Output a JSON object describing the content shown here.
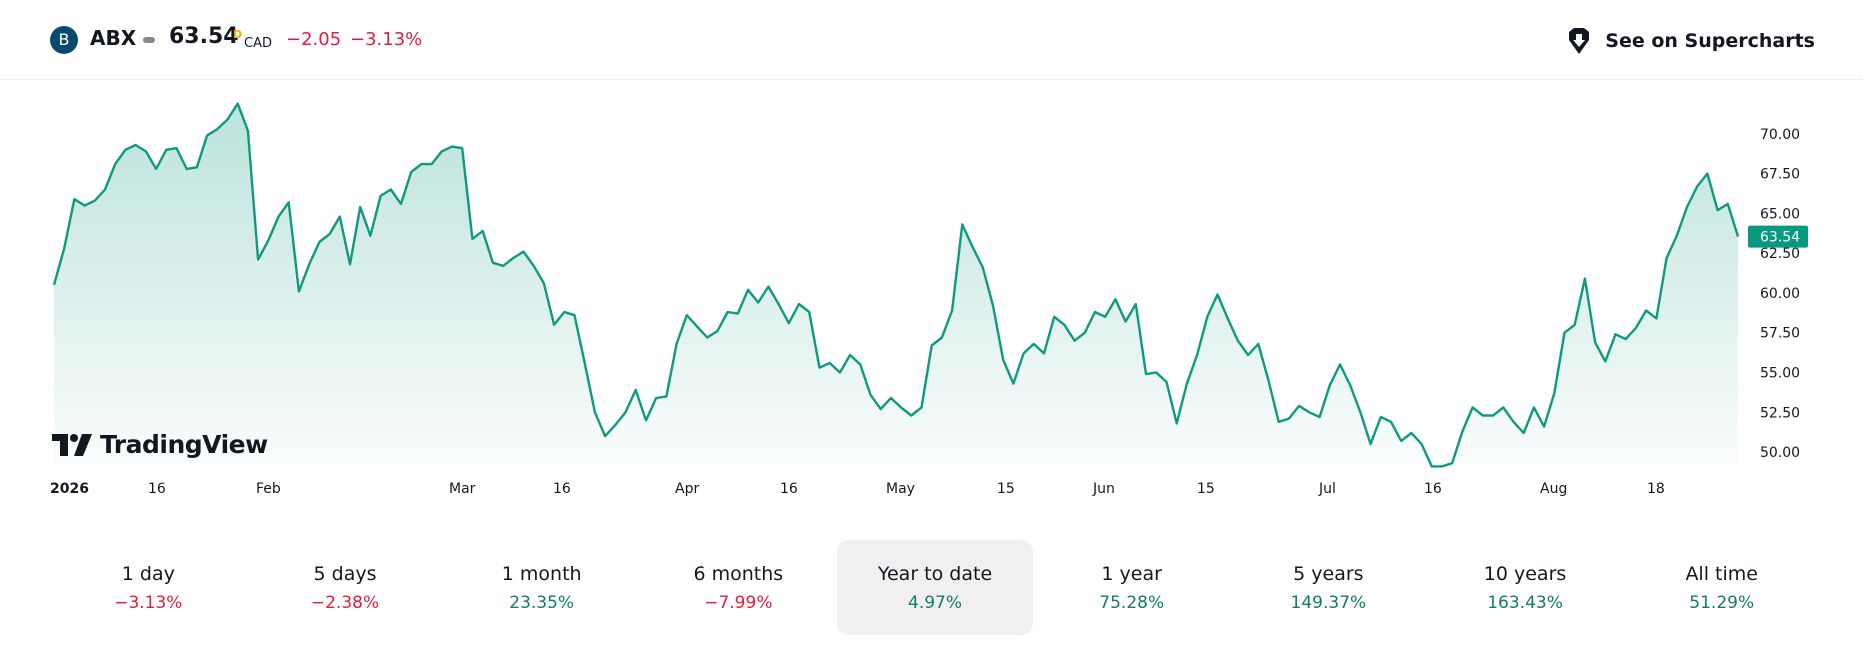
{
  "header": {
    "logo_letter": "B",
    "symbol": "ABX",
    "price": "63.54",
    "price_superscript": "D",
    "currency": "CAD",
    "change": "−2.05",
    "change_pct": "−3.13%",
    "supercharts_label": "See on Supercharts",
    "negative_color": "#e01e3c"
  },
  "brand": {
    "name": "TradingView"
  },
  "colors": {
    "line": "#0f9a80",
    "positive": "#137a6e",
    "negative": "#e01e3c",
    "price_badge": "#089981"
  },
  "chart_data": {
    "type": "area",
    "title": "",
    "xlabel": "",
    "ylabel": "",
    "ylim": [
      49.5,
      71.5
    ],
    "y_ticks": [
      "70.00",
      "67.50",
      "65.00",
      "62.50",
      "60.00",
      "57.50",
      "55.00",
      "52.50",
      "50.00"
    ],
    "x_tick_labels": [
      {
        "label": "2026",
        "bold": true
      },
      {
        "label": "16"
      },
      {
        "label": "Feb"
      },
      {
        "label": "Mar"
      },
      {
        "label": "16"
      },
      {
        "label": "Apr"
      },
      {
        "label": "16"
      },
      {
        "label": "May"
      },
      {
        "label": "15"
      },
      {
        "label": "Jun"
      },
      {
        "label": "15"
      },
      {
        "label": "Jul"
      },
      {
        "label": "16"
      },
      {
        "label": "Aug"
      },
      {
        "label": "18"
      }
    ],
    "last_price_label": "63.54",
    "series": [
      {
        "values": [
          60.5,
          62.8,
          65.9,
          65.5,
          65.8,
          66.5,
          68.1,
          69.0,
          69.3,
          68.9,
          67.8,
          69.0,
          69.1,
          67.8,
          67.9,
          69.9,
          70.3,
          70.9,
          71.9,
          70.2,
          62.1,
          63.3,
          64.8,
          65.7,
          60.1,
          61.8,
          63.2,
          63.7,
          64.8,
          61.8,
          65.4,
          63.6,
          66.1,
          66.5,
          65.6,
          67.6,
          68.1,
          68.1,
          68.9,
          69.2,
          69.1,
          63.4,
          63.9,
          61.9,
          61.7,
          62.2,
          62.6,
          61.7,
          60.6,
          58.0,
          58.8,
          58.6,
          55.6,
          52.5,
          51.0,
          51.7,
          52.5,
          53.9,
          52.0,
          53.4,
          53.5,
          56.8,
          58.6,
          57.9,
          57.2,
          57.6,
          58.8,
          58.7,
          60.2,
          59.4,
          60.4,
          59.3,
          58.1,
          59.3,
          58.8,
          55.3,
          55.6,
          55.0,
          56.1,
          55.5,
          53.6,
          52.7,
          53.4,
          52.8,
          52.3,
          52.8,
          56.7,
          57.2,
          58.9,
          64.3,
          62.9,
          61.6,
          59.2,
          55.8,
          54.3,
          56.2,
          56.8,
          56.2,
          58.5,
          58.0,
          57.0,
          57.5,
          58.8,
          58.5,
          59.6,
          58.2,
          59.3,
          54.9,
          55.0,
          54.4,
          51.8,
          54.3,
          56.1,
          58.5,
          59.9,
          58.4,
          57.0,
          56.1,
          56.8,
          54.5,
          51.9,
          52.1,
          52.9,
          52.5,
          52.2,
          54.2,
          55.5,
          54.2,
          52.5,
          50.5,
          52.2,
          51.9,
          50.7,
          51.2,
          50.5,
          49.1,
          49.1,
          49.3,
          51.3,
          52.8,
          52.3,
          52.3,
          52.8,
          51.9,
          51.2,
          52.8,
          51.6,
          53.7,
          57.5,
          58.0,
          60.9,
          56.9,
          55.7,
          57.4,
          57.1,
          57.8,
          58.9,
          58.4,
          62.2,
          63.6,
          65.4,
          66.7,
          67.5,
          65.2,
          65.6,
          63.54
        ]
      }
    ]
  },
  "periods": [
    {
      "label": "1 day",
      "value": "−3.13%",
      "trend": "neg",
      "active": false
    },
    {
      "label": "5 days",
      "value": "−2.38%",
      "trend": "neg",
      "active": false
    },
    {
      "label": "1 month",
      "value": "23.35%",
      "trend": "pos",
      "active": false
    },
    {
      "label": "6 months",
      "value": "−7.99%",
      "trend": "neg",
      "active": false
    },
    {
      "label": "Year to date",
      "value": "4.97%",
      "trend": "pos",
      "active": true
    },
    {
      "label": "1 year",
      "value": "75.28%",
      "trend": "pos",
      "active": false
    },
    {
      "label": "5 years",
      "value": "149.37%",
      "trend": "pos",
      "active": false
    },
    {
      "label": "10 years",
      "value": "163.43%",
      "trend": "pos",
      "active": false
    },
    {
      "label": "All time",
      "value": "51.29%",
      "trend": "pos",
      "active": false
    }
  ]
}
